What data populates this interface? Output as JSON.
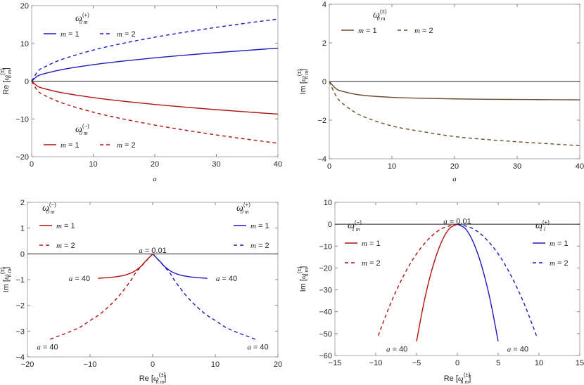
{
  "colors": {
    "plus": "#1a1ac0",
    "minus": "#b01010",
    "both": "#6e4a2a"
  },
  "chart_data": [
    {
      "type": "line",
      "xlabel": {
        "text": "a"
      },
      "ylabel": {
        "pre": "Re [",
        "sym": "ω",
        "sup": "(±)",
        "sub": "n m",
        "post": "]"
      },
      "xlim": [
        0,
        40
      ],
      "ylim": [
        -20,
        20
      ],
      "xticks": [
        0,
        10,
        20,
        30,
        40
      ],
      "yticks": [
        20,
        10,
        0,
        -10,
        -20
      ],
      "ytick_labels": [
        "20",
        "10",
        "0",
        "−10",
        "−20"
      ],
      "x": [
        0,
        1,
        2,
        5,
        10,
        15,
        20,
        25,
        30,
        35,
        40
      ],
      "series": [
        {
          "name": "m = 1",
          "group": "plus",
          "dash": false,
          "values": [
            0,
            1.38,
            1.95,
            3.09,
            4.36,
            5.34,
            6.17,
            6.9,
            7.56,
            8.16,
            8.73
          ]
        },
        {
          "name": "m = 2",
          "group": "plus",
          "dash": true,
          "values": [
            0,
            2.6,
            3.68,
            5.81,
            8.22,
            10.07,
            11.63,
            13.0,
            14.24,
            15.38,
            16.44
          ]
        },
        {
          "name": "m = 1",
          "group": "minus",
          "dash": false,
          "values": [
            0,
            -1.38,
            -1.95,
            -3.09,
            -4.36,
            -5.34,
            -6.17,
            -6.9,
            -7.56,
            -8.16,
            -8.73
          ]
        },
        {
          "name": "m = 2",
          "group": "minus",
          "dash": true,
          "values": [
            0,
            -2.6,
            -3.68,
            -5.81,
            -8.22,
            -10.07,
            -11.63,
            -13.0,
            -14.24,
            -15.38,
            -16.44
          ]
        }
      ],
      "legends": [
        {
          "group": "plus",
          "title": {
            "sym": "ω",
            "sup": "(+)",
            "sub": "0 m"
          }
        },
        {
          "group": "minus",
          "title": {
            "sym": "ω",
            "sup": "(−)",
            "sub": "0 m"
          }
        }
      ],
      "annotations": []
    },
    {
      "type": "line",
      "xlabel": {
        "text": "a"
      },
      "ylabel": {
        "pre": "Im [",
        "sym": "ω",
        "sup": "(±)",
        "sub": "n m",
        "post": "]"
      },
      "xlim": [
        0,
        40
      ],
      "ylim": [
        -4,
        4
      ],
      "xticks": [
        0,
        10,
        20,
        30,
        40
      ],
      "yticks": [
        4,
        2,
        0,
        -2,
        -4
      ],
      "ytick_labels": [
        "4",
        "2",
        "0",
        "−2",
        "−4"
      ],
      "x": [
        0,
        1,
        2,
        5,
        10,
        15,
        20,
        25,
        30,
        35,
        40
      ],
      "series": [
        {
          "name": "m = 1",
          "group": "both",
          "dash": false,
          "values": [
            0,
            -0.35,
            -0.5,
            -0.7,
            -0.82,
            -0.87,
            -0.9,
            -0.92,
            -0.93,
            -0.94,
            -0.95
          ]
        },
        {
          "name": "m = 2",
          "group": "both",
          "dash": true,
          "values": [
            0,
            -0.7,
            -1.1,
            -1.75,
            -2.3,
            -2.6,
            -2.85,
            -3.0,
            -3.12,
            -3.22,
            -3.32
          ]
        }
      ],
      "legends": [
        {
          "group": "both",
          "title": {
            "sym": "ω",
            "sup": "(±)",
            "sub": "0 m"
          }
        }
      ],
      "annotations": []
    },
    {
      "type": "line",
      "xlabel": {
        "pre": "Re [",
        "sym": "ω",
        "sup": "(±)",
        "sub": "n m",
        "post": "]"
      },
      "ylabel": {
        "pre": "Im [",
        "sym": "ω",
        "sup": "(±)",
        "sub": "n m",
        "post": "]"
      },
      "xlim": [
        -20,
        20
      ],
      "ylim": [
        -4,
        2
      ],
      "xticks": [
        -20,
        -10,
        0,
        10,
        20
      ],
      "xtick_labels": [
        "−20",
        "−10",
        "0",
        "10",
        "20"
      ],
      "yticks": [
        2,
        1,
        0,
        -1,
        -2,
        -3,
        -4
      ],
      "ytick_labels": [
        "2",
        "1",
        "0",
        "−1",
        "−2",
        "−3",
        "−4"
      ],
      "series": [
        {
          "name": "m = 1",
          "group": "minus",
          "dash": false,
          "x": [
            0,
            -1.38,
            -1.95,
            -3.09,
            -4.36,
            -5.34,
            -6.17,
            -6.9,
            -7.56,
            -8.16,
            -8.73
          ],
          "values": [
            0,
            -0.35,
            -0.5,
            -0.7,
            -0.82,
            -0.87,
            -0.9,
            -0.92,
            -0.93,
            -0.94,
            -0.95
          ]
        },
        {
          "name": "m = 2",
          "group": "minus",
          "dash": true,
          "x": [
            0,
            -2.6,
            -3.68,
            -5.81,
            -8.22,
            -10.07,
            -11.63,
            -13.0,
            -14.24,
            -15.38,
            -16.44
          ],
          "values": [
            0,
            -0.7,
            -1.1,
            -1.75,
            -2.3,
            -2.6,
            -2.85,
            -3.0,
            -3.12,
            -3.22,
            -3.32
          ]
        },
        {
          "name": "m = 1",
          "group": "plus",
          "dash": false,
          "x": [
            0,
            1.38,
            1.95,
            3.09,
            4.36,
            5.34,
            6.17,
            6.9,
            7.56,
            8.16,
            8.73
          ],
          "values": [
            0,
            -0.35,
            -0.5,
            -0.7,
            -0.82,
            -0.87,
            -0.9,
            -0.92,
            -0.93,
            -0.94,
            -0.95
          ]
        },
        {
          "name": "m = 2",
          "group": "plus",
          "dash": true,
          "x": [
            0,
            2.6,
            3.68,
            5.81,
            8.22,
            10.07,
            11.63,
            13.0,
            14.24,
            15.38,
            16.44
          ],
          "values": [
            0,
            -0.7,
            -1.1,
            -1.75,
            -2.3,
            -2.6,
            -2.85,
            -3.0,
            -3.12,
            -3.22,
            -3.32
          ]
        }
      ],
      "legends": [
        {
          "group": "minus",
          "title": {
            "sym": "ω",
            "sup": "(−)",
            "sub": "0 m"
          }
        },
        {
          "group": "plus",
          "title": {
            "sym": "ω",
            "sup": "(+)",
            "sub": "0 m"
          }
        }
      ],
      "annotations": [
        {
          "text": "a = 0.01",
          "x": 0,
          "y": 0.15
        },
        {
          "text": "a = 40",
          "x": -11.7,
          "y": -0.95
        },
        {
          "text": "a = 40",
          "x": 11.8,
          "y": -0.95
        },
        {
          "text": "a = 40",
          "x": -16.8,
          "y": -3.6
        },
        {
          "text": "a = 40",
          "x": 16.8,
          "y": -3.6
        }
      ]
    },
    {
      "type": "line",
      "xlabel": {
        "pre": "Re [",
        "sym": "ω",
        "sup": "(±)",
        "sub": "n m",
        "post": "]"
      },
      "ylabel": {
        "pre": "Im [",
        "sym": "ω",
        "sup": "(±)",
        "sub": "n m",
        "post": "]"
      },
      "xlim": [
        -15,
        15
      ],
      "ylim": [
        -60,
        10
      ],
      "xticks": [
        -15,
        -10,
        -5,
        0,
        5,
        10,
        15
      ],
      "xtick_labels": [
        "−15",
        "−10",
        "−5",
        "0",
        "5",
        "10",
        "15"
      ],
      "yticks": [
        10,
        0,
        -10,
        -20,
        -30,
        -40,
        -50,
        -60
      ],
      "ytick_labels": [
        "10",
        "0",
        "−10",
        "−20",
        "−30",
        "−40",
        "−50",
        "−60"
      ],
      "series": [
        {
          "name": "m = 1",
          "group": "minus",
          "dash": false,
          "x": [
            0,
            -1,
            -2,
            -3,
            -4,
            -5
          ],
          "values": [
            0,
            -2.1,
            -8.6,
            -19.3,
            -34.2,
            -53.5
          ]
        },
        {
          "name": "m = 2",
          "group": "minus",
          "dash": true,
          "x": [
            0,
            -2,
            -4,
            -6,
            -8,
            -9.8
          ],
          "values": [
            0,
            -2.2,
            -8.7,
            -19.5,
            -34.7,
            -52
          ]
        },
        {
          "name": "m = 1",
          "group": "plus",
          "dash": false,
          "x": [
            0,
            1,
            2,
            3,
            4,
            5
          ],
          "values": [
            0,
            -2.1,
            -8.6,
            -19.3,
            -34.2,
            -53.5
          ]
        },
        {
          "name": "m = 2",
          "group": "plus",
          "dash": true,
          "x": [
            0,
            2,
            4,
            6,
            8,
            9.8
          ],
          "values": [
            0,
            -2.2,
            -8.7,
            -19.5,
            -34.7,
            -52
          ]
        }
      ],
      "legends": [
        {
          "group": "minus",
          "title": {
            "sym": "ω",
            "sup": "(−)",
            "sub": "1 m"
          }
        },
        {
          "group": "plus",
          "title": {
            "sym": "ω",
            "sup": "(+)",
            "sub": "1 l"
          }
        }
      ],
      "annotations": [
        {
          "text": "a = 0.01",
          "x": 0,
          "y": 1.5
        },
        {
          "text": "a = 40",
          "x": -7.4,
          "y": -57
        },
        {
          "text": "a = 40",
          "x": 7.4,
          "y": -57
        }
      ]
    }
  ]
}
